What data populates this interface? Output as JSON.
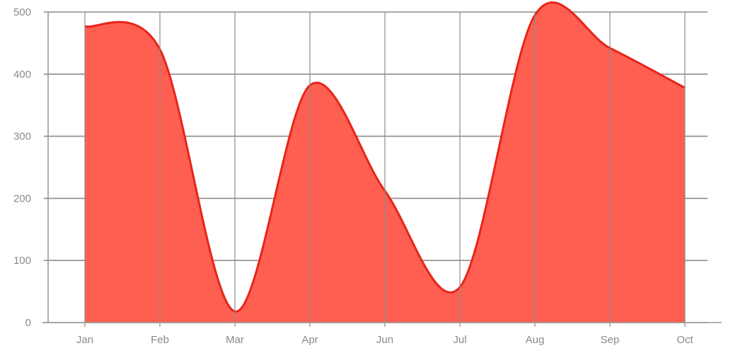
{
  "chart_data": {
    "type": "area",
    "categories": [
      "Jan",
      "Feb",
      "Mar",
      "Apr",
      "Jun",
      "Jul",
      "Aug",
      "Sep",
      "Oct"
    ],
    "series": [
      {
        "values": [
          477,
          440,
          18,
          382,
          212,
          57,
          495,
          442,
          378
        ]
      }
    ],
    "ylim": [
      0,
      500
    ],
    "yticks": [
      0,
      100,
      200,
      300,
      400,
      500
    ],
    "grid": true,
    "smooth": true,
    "colors": {
      "fill": "#ff5a4a",
      "line": "#e8241a"
    }
  }
}
